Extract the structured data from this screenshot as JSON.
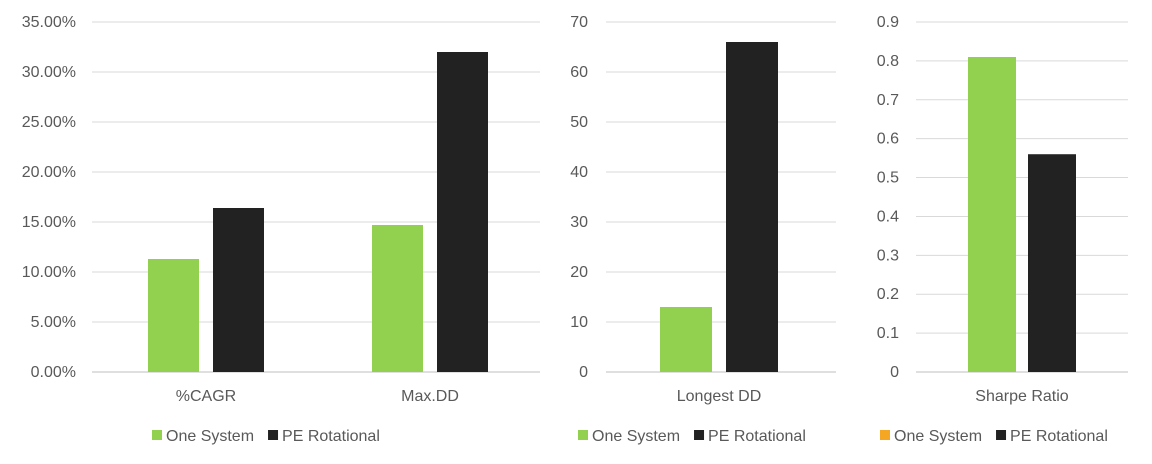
{
  "colors": {
    "green": "#92d050",
    "black": "#222222",
    "orange": "#f5a623",
    "grid": "#d9d9d9",
    "axis": "#bfbfbf",
    "text": "#595959"
  },
  "chart_data": [
    {
      "type": "bar",
      "categories": [
        "%CAGR",
        "Max.DD"
      ],
      "series": [
        {
          "name": "One System",
          "values": [
            0.113,
            0.147
          ],
          "color": "green"
        },
        {
          "name": "PE Rotational",
          "values": [
            0.164,
            0.32
          ],
          "color": "black"
        }
      ],
      "ylim": [
        0,
        0.35
      ],
      "yticks": [
        "0.00%",
        "5.00%",
        "10.00%",
        "15.00%",
        "20.00%",
        "25.00%",
        "30.00%",
        "35.00%"
      ],
      "legend": [
        {
          "label": "One System",
          "color": "green"
        },
        {
          "label": "PE Rotational",
          "color": "black"
        }
      ],
      "grid": true,
      "legend_position": "bottom"
    },
    {
      "type": "bar",
      "categories": [
        "Longest DD"
      ],
      "series": [
        {
          "name": "One System",
          "values": [
            13
          ],
          "color": "green"
        },
        {
          "name": "PE Rotational",
          "values": [
            66
          ],
          "color": "black"
        }
      ],
      "ylim": [
        0,
        70
      ],
      "yticks": [
        "0",
        "10",
        "20",
        "30",
        "40",
        "50",
        "60",
        "70"
      ],
      "legend": [
        {
          "label": "One System",
          "color": "green"
        },
        {
          "label": "PE Rotational",
          "color": "black"
        }
      ],
      "grid": true,
      "legend_position": "bottom"
    },
    {
      "type": "bar",
      "categories": [
        "Sharpe Ratio"
      ],
      "series": [
        {
          "name": "One System",
          "values": [
            0.81
          ],
          "color": "green"
        },
        {
          "name": "PE Rotational",
          "values": [
            0.56
          ],
          "color": "black"
        }
      ],
      "ylim": [
        0,
        0.9
      ],
      "yticks": [
        "0",
        "0.1",
        "0.2",
        "0.3",
        "0.4",
        "0.5",
        "0.6",
        "0.7",
        "0.8",
        "0.9"
      ],
      "legend": [
        {
          "label": "One System",
          "color": "orange"
        },
        {
          "label": "PE Rotational",
          "color": "black"
        }
      ],
      "grid": true,
      "legend_position": "bottom"
    }
  ]
}
